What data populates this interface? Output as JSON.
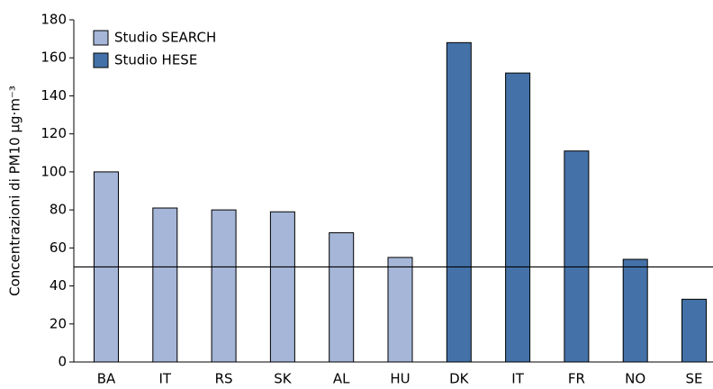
{
  "chart_data": {
    "type": "bar",
    "ylabel": "Concentrazioni di PM10 µg·m⁻³",
    "categories": [
      "BA",
      "IT",
      "RS",
      "SK",
      "AL",
      "HU",
      "DK",
      "IT",
      "FR",
      "NO",
      "SE"
    ],
    "series": [
      {
        "name": "Studio SEARCH",
        "color": "#a5b6d8",
        "values": [
          100,
          81,
          80,
          79,
          68,
          55,
          null,
          null,
          null,
          null,
          null
        ]
      },
      {
        "name": "Studio HESE",
        "color": "#4472a8",
        "values": [
          null,
          null,
          null,
          null,
          null,
          null,
          168,
          152,
          111,
          54,
          33
        ]
      }
    ],
    "reference_line": 50,
    "ylim": [
      0,
      180
    ],
    "yticks": [
      0,
      20,
      40,
      60,
      80,
      100,
      120,
      140,
      160,
      180
    ],
    "legend": "upper left"
  }
}
